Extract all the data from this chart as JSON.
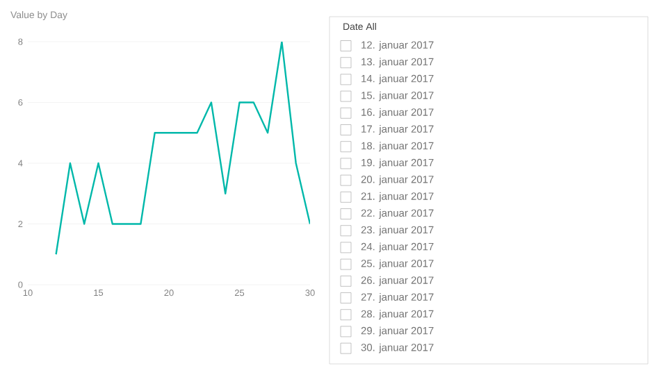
{
  "chart_data": [
    {
      "type": "line",
      "title": "Value by Day",
      "x": [
        12,
        13,
        14,
        15,
        16,
        17,
        18,
        19,
        20,
        21,
        22,
        23,
        24,
        25,
        26,
        27,
        28,
        29,
        30
      ],
      "values": [
        1,
        4,
        2,
        4,
        2,
        2,
        2,
        5,
        5,
        5,
        5,
        6,
        3,
        6,
        6,
        5,
        8,
        4,
        2
      ],
      "color": "#01b8aa",
      "xlim": [
        10,
        30
      ],
      "ylim": [
        0,
        8
      ],
      "xticks": [
        10,
        15,
        20,
        25,
        30
      ],
      "yticks": [
        0,
        2,
        4,
        6,
        8
      ],
      "grid": "y"
    },
    {
      "type": "other",
      "title": "Date All",
      "annotations": [
        "12. januar 2017",
        "13. januar 2017",
        "14. januar 2017",
        "15. januar 2017",
        "16. januar 2017",
        "17. januar 2017",
        "18. januar 2017",
        "19. januar 2017",
        "20. januar 2017",
        "21. januar 2017",
        "22. januar 2017",
        "23. januar 2017",
        "24. januar 2017",
        "25. januar 2017",
        "26. januar 2017",
        "27. januar 2017",
        "28. januar 2017",
        "29. januar 2017",
        "30. januar 2017"
      ]
    }
  ]
}
